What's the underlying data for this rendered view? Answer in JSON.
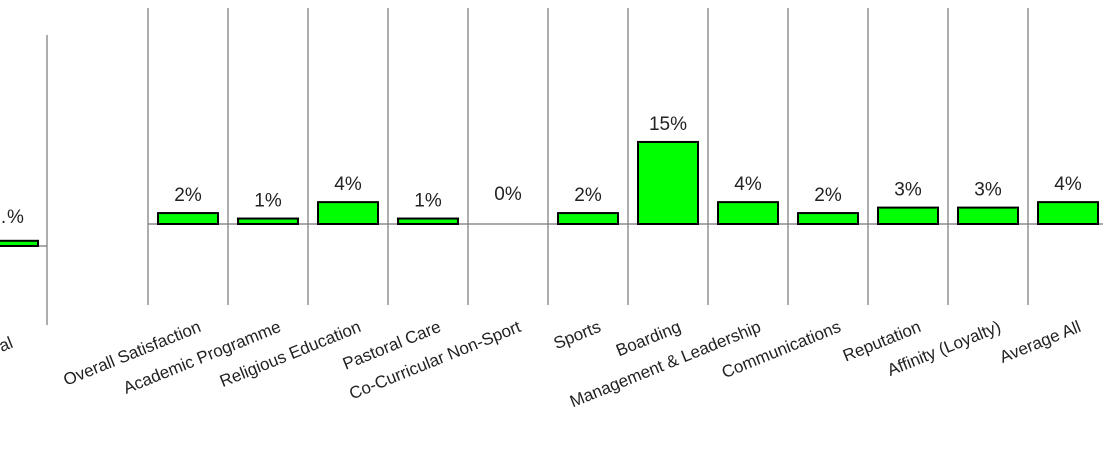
{
  "chart_data": [
    {
      "type": "bar",
      "categories": [
        "…al"
      ],
      "values": [
        1
      ],
      "value_labels": [
        "…%"
      ],
      "note": "partially cropped at left edge"
    },
    {
      "type": "bar",
      "categories": [
        "Overall Satisfaction",
        "Academic Programme",
        "Religious Education",
        "Pastoral Care",
        "Co-Curricular Non-Sport",
        "Sports",
        "Boarding",
        "Management & Leadership",
        "Communications",
        "Reputation",
        "Affinity (Loyalty)",
        "Average All"
      ],
      "values": [
        2,
        1,
        4,
        1,
        0,
        2,
        15,
        4,
        2,
        3,
        3,
        4
      ],
      "value_labels": [
        "2%",
        "1%",
        "4%",
        "1%",
        "0%",
        "2%",
        "15%",
        "4%",
        "2%",
        "3%",
        "3%",
        "4%"
      ],
      "bar_color": "#00ff00",
      "grid": true
    }
  ]
}
